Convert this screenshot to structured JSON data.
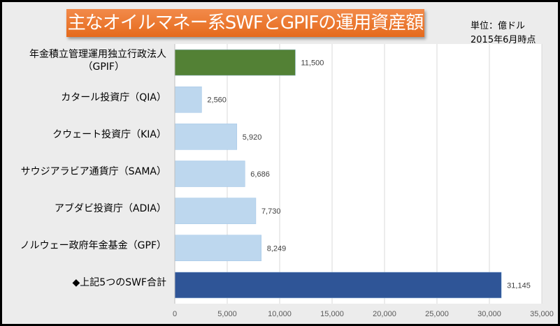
{
  "chart_data": {
    "type": "bar",
    "orientation": "horizontal",
    "title": "主なオイルマネー系SWFとGPIFの運用資産額",
    "unit_note": "単位：億ドル",
    "date_note": "2015年6月時点",
    "categories": [
      "年金積立管理運用独立行政法人（GPIF）",
      "カタール投資庁（QIA）",
      "クウェート投資庁（KIA）",
      "サウジアラビア通貨庁（SAMA）",
      "アブダビ投資庁（ADIA）",
      "ノルウェー政府年金基金（GPF）",
      "◆上記5つのSWF合計"
    ],
    "category_lines": [
      [
        "年金積立管理運用独立行政法人",
        "（GPIF）"
      ],
      [
        "カタール投資庁（QIA）"
      ],
      [
        "クウェート投資庁（KIA）"
      ],
      [
        "サウジアラビア通貨庁（SAMA）"
      ],
      [
        "アブダビ投資庁（ADIA）"
      ],
      [
        "ノルウェー政府年金基金（GPF）"
      ],
      [
        "◆上記5つのSWF合計"
      ]
    ],
    "values": [
      11500,
      2560,
      5920,
      6686,
      7730,
      8249,
      31145
    ],
    "value_labels": [
      "11,500",
      "2,560",
      "5,920",
      "6,686",
      "7,730",
      "8,249",
      "31,145"
    ],
    "colors": [
      "#538135",
      "#bdd7ee",
      "#bdd7ee",
      "#bdd7ee",
      "#bdd7ee",
      "#bdd7ee",
      "#2f5597"
    ],
    "xlim": [
      0,
      35000
    ],
    "xticks": [
      0,
      5000,
      10000,
      15000,
      20000,
      25000,
      30000,
      35000
    ],
    "xtick_labels": [
      "0",
      "5,000",
      "10,000",
      "15,000",
      "20,000",
      "25,000",
      "30,000",
      "35,000"
    ],
    "grid": true
  }
}
